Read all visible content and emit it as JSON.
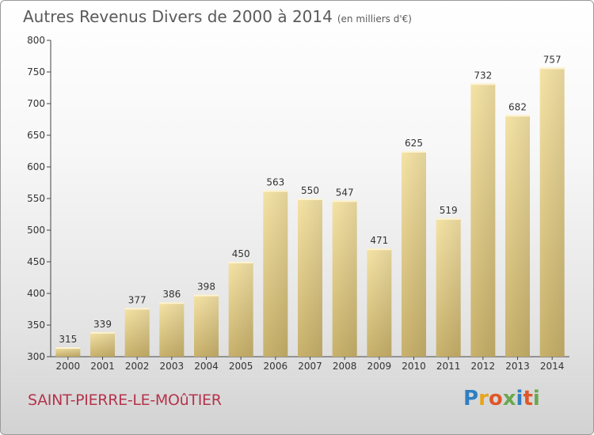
{
  "header": {
    "title": "Autres Revenus Divers de 2000 à 2014",
    "subtitle": "(en milliers d'€)"
  },
  "footer": {
    "city": "SAINT-PIERRE-LE-MOûTIER",
    "logo": {
      "letters": [
        "P",
        "r",
        "o",
        "x",
        "i",
        "t",
        "i"
      ],
      "colors": [
        "#2f7fc1",
        "#e8a41b",
        "#e0572a",
        "#6aa84f",
        "#2f7fc1",
        "#e0572a",
        "#6aa84f"
      ]
    }
  },
  "chart_data": {
    "type": "bar",
    "categories": [
      "2000",
      "2001",
      "2002",
      "2003",
      "2004",
      "2005",
      "2006",
      "2007",
      "2008",
      "2009",
      "2010",
      "2011",
      "2012",
      "2013",
      "2014"
    ],
    "values": [
      315,
      339,
      377,
      386,
      398,
      450,
      563,
      550,
      547,
      471,
      625,
      519,
      732,
      682,
      757
    ],
    "ylim": [
      300,
      800
    ],
    "yticks": [
      300,
      350,
      400,
      450,
      500,
      550,
      600,
      650,
      700,
      750,
      800
    ],
    "grid": false,
    "bar_color": "#e8d08a"
  }
}
